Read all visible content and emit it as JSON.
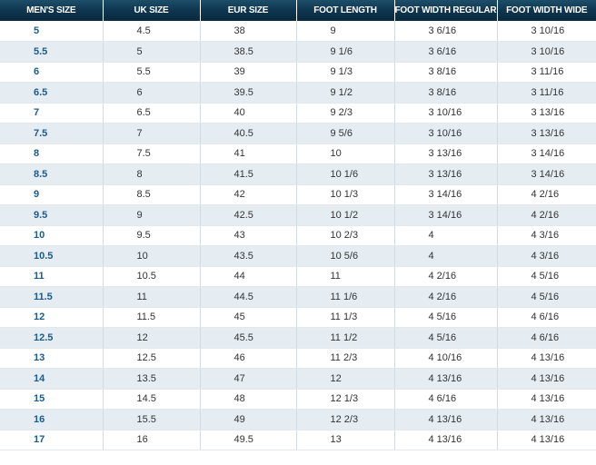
{
  "table": {
    "headers": [
      "MEN'S SIZE",
      "UK SIZE",
      "EUR SIZE",
      "FOOT LENGTH",
      "FOOT WIDTH REGULAR",
      "FOOT WIDTH WIDE"
    ],
    "rows": [
      [
        "5",
        "4.5",
        "38",
        "9",
        "3 6/16",
        "3 10/16"
      ],
      [
        "5.5",
        "5",
        "38.5",
        "9 1/6",
        "3 6/16",
        "3 10/16"
      ],
      [
        "6",
        "5.5",
        "39",
        "9 1/3",
        "3 8/16",
        "3 11/16"
      ],
      [
        "6.5",
        "6",
        "39.5",
        "9 1/2",
        "3 8/16",
        "3 11/16"
      ],
      [
        "7",
        "6.5",
        "40",
        "9 2/3",
        "3 10/16",
        "3 13/16"
      ],
      [
        "7.5",
        "7",
        "40.5",
        "9 5/6",
        "3 10/16",
        "3 13/16"
      ],
      [
        "8",
        "7.5",
        "41",
        "10",
        "3 13/16",
        "3 14/16"
      ],
      [
        "8.5",
        "8",
        "41.5",
        "10 1/6",
        "3 13/16",
        "3 14/16"
      ],
      [
        "9",
        "8.5",
        "42",
        "10 1/3",
        "3 14/16",
        "4 2/16"
      ],
      [
        "9.5",
        "9",
        "42.5",
        "10 1/2",
        "3 14/16",
        "4 2/16"
      ],
      [
        "10",
        "9.5",
        "43",
        "10 2/3",
        "4",
        "4 3/16"
      ],
      [
        "10.5",
        "10",
        "43.5",
        "10 5/6",
        "4",
        "4 3/16"
      ],
      [
        "11",
        "10.5",
        "44",
        "11",
        "4 2/16",
        "4 5/16"
      ],
      [
        "11.5",
        "11",
        "44.5",
        "11 1/6",
        "4 2/16",
        "4 5/16"
      ],
      [
        "12",
        "11.5",
        "45",
        "11 1/3",
        "4 5/16",
        "4 6/16"
      ],
      [
        "12.5",
        "12",
        "45.5",
        "11 1/2",
        "4 5/16",
        "4 6/16"
      ],
      [
        "13",
        "12.5",
        "46",
        "11 2/3",
        "4 10/16",
        "4 13/16"
      ],
      [
        "14",
        "13.5",
        "47",
        "12",
        "4 13/16",
        "4 13/16"
      ],
      [
        "15",
        "14.5",
        "48",
        "12 1/3",
        "4 6/16",
        "4 13/16"
      ],
      [
        "16",
        "15.5",
        "49",
        "12 2/3",
        "4 13/16",
        "4 13/16"
      ],
      [
        "17",
        "16",
        "49.5",
        "13",
        "4 13/16",
        "4 13/16"
      ]
    ]
  },
  "colors": {
    "header_bg": "#0f3550",
    "header_text": "#ffffff",
    "row_alt_bg": "#e5edf3",
    "first_col_text": "#1d5b8b",
    "cell_text": "#333333"
  }
}
